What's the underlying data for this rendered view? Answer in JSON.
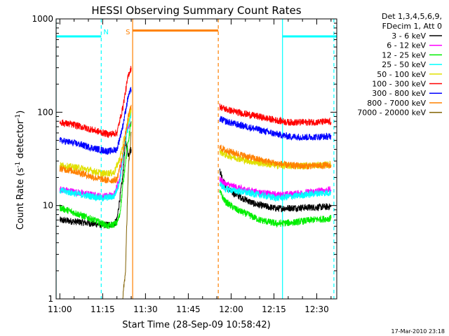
{
  "chart_data": {
    "type": "line",
    "title": "HESSI Observing Summary Count Rates",
    "xlabel": "Start Time (28-Sep-09 10:58:42)",
    "ylabel_prefix": "Count Rate (s",
    "ylabel_sup1": "-1",
    "ylabel_mid": " detector",
    "ylabel_sup2": "-1",
    "ylabel_suffix": ")",
    "yscale": "log",
    "ylim": [
      1,
      1000
    ],
    "xlim": [
      "10:58:42",
      "12:37:00"
    ],
    "x_ticks": [
      "11:00",
      "11:15",
      "11:30",
      "11:45",
      "12:00",
      "12:15",
      "12:30"
    ],
    "y_ticks": [
      "1",
      "10",
      "100",
      "1000"
    ],
    "footer_date": "17-Mar-2010 23:18",
    "legend": {
      "header_line1": "Det 1,3,4,5,6,9,",
      "header_line2": "FDecim 1, Att 0",
      "entries": [
        {
          "label": "3 - 6 keV",
          "color": "#000000"
        },
        {
          "label": "6 - 12 keV",
          "color": "#ff00ff"
        },
        {
          "label": "12 - 25 keV",
          "color": "#00ee00"
        },
        {
          "label": "25 - 50 keV",
          "color": "#00ffff"
        },
        {
          "label": "50 - 100 keV",
          "color": "#e0e000"
        },
        {
          "label": "100 - 300 keV",
          "color": "#ff0000"
        },
        {
          "label": "300 - 800 keV",
          "color": "#0000ff"
        },
        {
          "label": "800 - 7000 keV",
          "color": "#ff8000"
        },
        {
          "label": "7000 - 20000 keV",
          "color": "#806000"
        }
      ]
    },
    "flags": [
      {
        "label": "N",
        "color": "#00ffff"
      },
      {
        "label": "S",
        "color": "#ff8000"
      }
    ],
    "night_intervals": [
      {
        "start": "10:58:42",
        "end": "11:14:30",
        "level": 650
      },
      {
        "start": "12:18:00",
        "end": "12:37:00",
        "level": 650
      }
    ],
    "saa_intervals": [
      {
        "start": "11:25:30",
        "end": "11:55:30",
        "level": 750
      }
    ],
    "series": [
      {
        "name": "3 - 6 keV",
        "color": "#000000",
        "segments": [
          [
            [
              "11:00",
              7
            ],
            [
              "11:08",
              6.6
            ],
            [
              "11:15",
              6.2
            ],
            [
              "11:19",
              6.3
            ],
            [
              "11:20",
              7
            ],
            [
              "11:22",
              20
            ],
            [
              "11:23",
              50
            ],
            [
              "11:24",
              35
            ],
            [
              "11:25",
              40
            ]
          ],
          [
            [
              "11:56",
              24
            ],
            [
              "11:58",
              16
            ],
            [
              "12:00",
              14
            ],
            [
              "12:04",
              12
            ],
            [
              "12:08",
              10.5
            ],
            [
              "12:12",
              9.8
            ],
            [
              "12:16",
              9.3
            ],
            [
              "12:20",
              9.4
            ],
            [
              "12:25",
              9.5
            ],
            [
              "12:30",
              9.6
            ],
            [
              "12:35",
              9.7
            ]
          ]
        ]
      },
      {
        "name": "6 - 12 keV",
        "color": "#ff00ff",
        "segments": [
          [
            [
              "11:00",
              15
            ],
            [
              "11:08",
              13.5
            ],
            [
              "11:15",
              12.5
            ],
            [
              "11:19",
              13
            ],
            [
              "11:21",
              20
            ],
            [
              "11:23",
              60
            ],
            [
              "11:25",
              80
            ]
          ],
          [
            [
              "11:56",
              19
            ],
            [
              "11:58",
              17
            ],
            [
              "12:04",
              15
            ],
            [
              "12:10",
              13.8
            ],
            [
              "12:16",
              13
            ],
            [
              "12:22",
              13.3
            ],
            [
              "12:30",
              14.2
            ],
            [
              "12:35",
              14.8
            ]
          ]
        ]
      },
      {
        "name": "12 - 25 keV",
        "color": "#00ee00",
        "segments": [
          [
            [
              "11:00",
              9.5
            ],
            [
              "11:06",
              8.2
            ],
            [
              "11:12",
              7
            ],
            [
              "11:17",
              6
            ],
            [
              "11:20",
              6.5
            ],
            [
              "11:21",
              8
            ],
            [
              "11:23",
              30
            ],
            [
              "11:25",
              80
            ]
          ],
          [
            [
              "11:56",
              14
            ],
            [
              "11:58",
              11
            ],
            [
              "12:02",
              9
            ],
            [
              "12:06",
              8
            ],
            [
              "12:10",
              7
            ],
            [
              "12:16",
              6.4
            ],
            [
              "12:22",
              6.6
            ],
            [
              "12:28",
              7
            ],
            [
              "12:35",
              7.3
            ]
          ]
        ]
      },
      {
        "name": "25 - 50 keV",
        "color": "#00ffff",
        "segments": [
          [
            [
              "11:00",
              14.5
            ],
            [
              "11:08",
              13
            ],
            [
              "11:15",
              12
            ],
            [
              "11:19",
              12.5
            ],
            [
              "11:21",
              18
            ],
            [
              "11:23",
              50
            ],
            [
              "11:25",
              100
            ]
          ],
          [
            [
              "11:56",
              17
            ],
            [
              "11:58",
              15
            ],
            [
              "12:04",
              14
            ],
            [
              "12:10",
              13
            ],
            [
              "12:16",
              12
            ],
            [
              "12:22",
              12.6
            ],
            [
              "12:30",
              13.5
            ],
            [
              "12:35",
              13.8
            ]
          ]
        ]
      },
      {
        "name": "50 - 100 keV",
        "color": "#e0e000",
        "segments": [
          [
            [
              "11:00",
              27
            ],
            [
              "11:08",
              25
            ],
            [
              "11:15",
              22
            ],
            [
              "11:19",
              22.5
            ],
            [
              "11:21",
              32
            ],
            [
              "11:23",
              60
            ],
            [
              "11:25",
              110
            ]
          ],
          [
            [
              "11:56",
              38
            ],
            [
              "11:58",
              35
            ],
            [
              "12:04",
              31
            ],
            [
              "12:10",
              28.5
            ],
            [
              "12:16",
              27
            ],
            [
              "12:22",
              26.5
            ],
            [
              "12:30",
              27
            ],
            [
              "12:35",
              27.5
            ]
          ]
        ]
      },
      {
        "name": "100 - 300 keV",
        "color": "#ff0000",
        "segments": [
          [
            [
              "11:00",
              78
            ],
            [
              "11:06",
              72
            ],
            [
              "11:12",
              64
            ],
            [
              "11:17",
              58
            ],
            [
              "11:20",
              60
            ],
            [
              "11:22",
              110
            ],
            [
              "11:24",
              250
            ],
            [
              "11:25",
              300
            ]
          ],
          [
            [
              "11:56",
              115
            ],
            [
              "11:58",
              108
            ],
            [
              "12:02",
              100
            ],
            [
              "12:08",
              92
            ],
            [
              "12:14",
              84
            ],
            [
              "12:20",
              78
            ],
            [
              "12:26",
              78
            ],
            [
              "12:35",
              79
            ]
          ]
        ]
      },
      {
        "name": "300 - 800 keV",
        "color": "#0000ff",
        "segments": [
          [
            [
              "11:00",
              50
            ],
            [
              "11:06",
              46
            ],
            [
              "11:12",
              41
            ],
            [
              "11:17",
              38
            ],
            [
              "11:20",
              40
            ],
            [
              "11:22",
              70
            ],
            [
              "11:24",
              150
            ],
            [
              "11:25",
              175
            ]
          ],
          [
            [
              "11:56",
              85
            ],
            [
              "11:58",
              80
            ],
            [
              "12:02",
              74
            ],
            [
              "12:08",
              67
            ],
            [
              "12:14",
              60
            ],
            [
              "12:20",
              55
            ],
            [
              "12:26",
              54
            ],
            [
              "12:35",
              55
            ]
          ]
        ]
      },
      {
        "name": "800 - 7000 keV",
        "color": "#ff8000",
        "segments": [
          [
            [
              "11:00",
              25
            ],
            [
              "11:06",
              23
            ],
            [
              "11:12",
              20
            ],
            [
              "11:17",
              18.5
            ],
            [
              "11:20",
              19
            ],
            [
              "11:22",
              35
            ],
            [
              "11:24",
              90
            ],
            [
              "11:25",
              120
            ]
          ],
          [
            [
              "11:56",
              42
            ],
            [
              "11:58",
              39
            ],
            [
              "12:02",
              36
            ],
            [
              "12:08",
              32
            ],
            [
              "12:14",
              29
            ],
            [
              "12:20",
              27
            ],
            [
              "12:26",
              26.5
            ],
            [
              "12:35",
              27
            ]
          ]
        ]
      },
      {
        "name": "7000 - 20000 keV",
        "color": "#806000",
        "segments": [
          [
            [
              "11:22",
              1
            ],
            [
              "11:23",
              2
            ],
            [
              "11:24",
              25
            ],
            [
              "11:25",
              60
            ]
          ]
        ]
      }
    ]
  }
}
